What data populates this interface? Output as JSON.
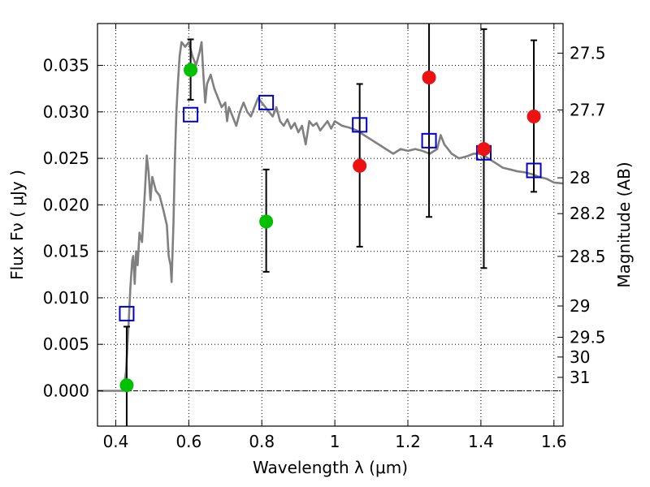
{
  "chart_data": {
    "type": "scatter",
    "xlabel": "Wavelength  λ (μm)",
    "ylabel": "Flux  Fν  ( μJy )",
    "ylabel_right": "Magnitude (AB)",
    "xlim": [
      0.35,
      1.625
    ],
    "ylim": [
      -0.0038,
      0.0395
    ],
    "grid": true,
    "xticks": [
      {
        "v": 0.4,
        "label": "0.4"
      },
      {
        "v": 0.6,
        "label": "0.6"
      },
      {
        "v": 0.8,
        "label": "0.8"
      },
      {
        "v": 1.0,
        "label": "1"
      },
      {
        "v": 1.2,
        "label": "1.2"
      },
      {
        "v": 1.4,
        "label": "1.4"
      },
      {
        "v": 1.6,
        "label": "1.6"
      }
    ],
    "yticks": [
      {
        "v": 0.0,
        "label": "0.000"
      },
      {
        "v": 0.005,
        "label": "0.005"
      },
      {
        "v": 0.01,
        "label": "0.010"
      },
      {
        "v": 0.015,
        "label": "0.015"
      },
      {
        "v": 0.02,
        "label": "0.020"
      },
      {
        "v": 0.025,
        "label": "0.025"
      },
      {
        "v": 0.03,
        "label": "0.030"
      },
      {
        "v": 0.035,
        "label": "0.035"
      }
    ],
    "mag_ticks": [
      {
        "mag": 27.5,
        "label": "27.5"
      },
      {
        "mag": 27.7,
        "label": "27.7"
      },
      {
        "mag": 28.0,
        "label": "28"
      },
      {
        "mag": 28.2,
        "label": "28.2"
      },
      {
        "mag": 28.5,
        "label": "28.5"
      },
      {
        "mag": 29.0,
        "label": "29"
      },
      {
        "mag": 29.5,
        "label": "29.5"
      },
      {
        "mag": 30.0,
        "label": "30"
      },
      {
        "mag": 31.0,
        "label": "31"
      }
    ],
    "colors": {
      "model": "#808080",
      "green": "#00c000",
      "red": "#ee1111",
      "square": "#0000cc",
      "error": "#000000"
    },
    "model_spectrum": [
      [
        0.35,
        0.0
      ],
      [
        0.39,
        0.0
      ],
      [
        0.42,
        0.0
      ],
      [
        0.428,
        0.002
      ],
      [
        0.435,
        0.007
      ],
      [
        0.44,
        0.011
      ],
      [
        0.445,
        0.014
      ],
      [
        0.448,
        0.0145
      ],
      [
        0.452,
        0.0115
      ],
      [
        0.456,
        0.015
      ],
      [
        0.46,
        0.0135
      ],
      [
        0.465,
        0.017
      ],
      [
        0.472,
        0.016
      ],
      [
        0.48,
        0.0215
      ],
      [
        0.485,
        0.0253
      ],
      [
        0.49,
        0.0235
      ],
      [
        0.495,
        0.0205
      ],
      [
        0.5,
        0.023
      ],
      [
        0.51,
        0.0215
      ],
      [
        0.52,
        0.021
      ],
      [
        0.53,
        0.0195
      ],
      [
        0.54,
        0.0178
      ],
      [
        0.545,
        0.0145
      ],
      [
        0.55,
        0.0135
      ],
      [
        0.553,
        0.0117
      ],
      [
        0.558,
        0.018
      ],
      [
        0.562,
        0.025
      ],
      [
        0.566,
        0.03
      ],
      [
        0.57,
        0.033
      ],
      [
        0.575,
        0.036
      ],
      [
        0.58,
        0.0375
      ],
      [
        0.59,
        0.037
      ],
      [
        0.6,
        0.0375
      ],
      [
        0.61,
        0.036
      ],
      [
        0.62,
        0.035
      ],
      [
        0.63,
        0.0365
      ],
      [
        0.635,
        0.0375
      ],
      [
        0.64,
        0.034
      ],
      [
        0.645,
        0.031
      ],
      [
        0.65,
        0.033
      ],
      [
        0.66,
        0.034
      ],
      [
        0.67,
        0.0325
      ],
      [
        0.68,
        0.0315
      ],
      [
        0.69,
        0.0305
      ],
      [
        0.7,
        0.031
      ],
      [
        0.705,
        0.029
      ],
      [
        0.71,
        0.0305
      ],
      [
        0.72,
        0.0295
      ],
      [
        0.73,
        0.0285
      ],
      [
        0.74,
        0.03
      ],
      [
        0.75,
        0.031
      ],
      [
        0.76,
        0.03
      ],
      [
        0.77,
        0.0295
      ],
      [
        0.78,
        0.0305
      ],
      [
        0.79,
        0.0315
      ],
      [
        0.8,
        0.031
      ],
      [
        0.81,
        0.0305
      ],
      [
        0.82,
        0.03
      ],
      [
        0.83,
        0.0295
      ],
      [
        0.84,
        0.0305
      ],
      [
        0.85,
        0.029
      ],
      [
        0.86,
        0.0285
      ],
      [
        0.87,
        0.0292
      ],
      [
        0.88,
        0.0282
      ],
      [
        0.89,
        0.0288
      ],
      [
        0.9,
        0.0278
      ],
      [
        0.91,
        0.0285
      ],
      [
        0.92,
        0.0265
      ],
      [
        0.93,
        0.029
      ],
      [
        0.94,
        0.0285
      ],
      [
        0.95,
        0.0288
      ],
      [
        0.96,
        0.028
      ],
      [
        0.97,
        0.0285
      ],
      [
        0.98,
        0.029
      ],
      [
        0.99,
        0.0282
      ],
      [
        1.0,
        0.029
      ],
      [
        1.02,
        0.0285
      ],
      [
        1.04,
        0.0283
      ],
      [
        1.06,
        0.028
      ],
      [
        1.08,
        0.0275
      ],
      [
        1.1,
        0.027
      ],
      [
        1.12,
        0.0265
      ],
      [
        1.14,
        0.026
      ],
      [
        1.16,
        0.0255
      ],
      [
        1.18,
        0.026
      ],
      [
        1.2,
        0.0258
      ],
      [
        1.22,
        0.026
      ],
      [
        1.24,
        0.0258
      ],
      [
        1.26,
        0.0255
      ],
      [
        1.28,
        0.026
      ],
      [
        1.29,
        0.0275
      ],
      [
        1.3,
        0.0265
      ],
      [
        1.32,
        0.0255
      ],
      [
        1.34,
        0.025
      ],
      [
        1.36,
        0.0252
      ],
      [
        1.38,
        0.0255
      ],
      [
        1.4,
        0.0255
      ],
      [
        1.42,
        0.025
      ],
      [
        1.44,
        0.0245
      ],
      [
        1.46,
        0.024
      ],
      [
        1.48,
        0.0238
      ],
      [
        1.5,
        0.0236
      ],
      [
        1.52,
        0.0235
      ],
      [
        1.54,
        0.0233
      ],
      [
        1.56,
        0.023
      ],
      [
        1.58,
        0.0228
      ],
      [
        1.6,
        0.0224
      ],
      [
        1.625,
        0.0223
      ]
    ],
    "green_points": [
      [
        0.43,
        0.0006
      ],
      [
        0.605,
        0.0345
      ],
      [
        0.812,
        0.0182
      ]
    ],
    "red_points": [
      [
        1.068,
        0.0242
      ],
      [
        1.258,
        0.0337
      ],
      [
        1.408,
        0.026
      ],
      [
        1.545,
        0.0295
      ]
    ],
    "square_points": [
      [
        0.43,
        0.0083
      ],
      [
        0.605,
        0.0297
      ],
      [
        0.812,
        0.031
      ],
      [
        1.068,
        0.0286
      ],
      [
        1.258,
        0.0269
      ],
      [
        1.408,
        0.0256
      ],
      [
        1.545,
        0.0237
      ]
    ],
    "error_bars": [
      [
        0.43,
        -0.0045,
        0.0069
      ],
      [
        0.605,
        0.0313,
        0.0378
      ],
      [
        0.812,
        0.0128,
        0.0238
      ],
      [
        1.068,
        0.0155,
        0.033
      ],
      [
        1.258,
        0.0187,
        0.04
      ],
      [
        1.408,
        0.0132,
        0.0389
      ],
      [
        1.545,
        0.0214,
        0.0377
      ]
    ]
  }
}
